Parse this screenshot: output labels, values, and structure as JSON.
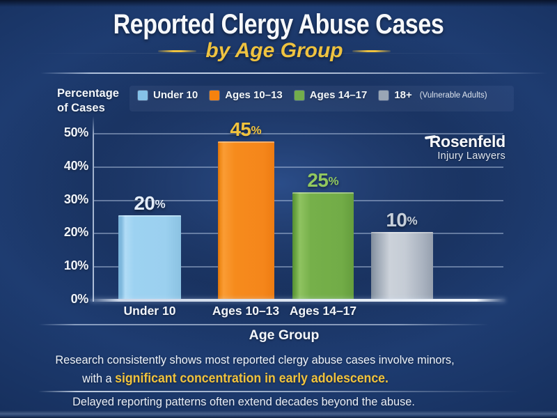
{
  "header": {
    "title": "Reported Clergy Abuse Cases",
    "subtitle": "by Age Group"
  },
  "axis": {
    "ylabel": "Percentage\nof Cases",
    "xlabel": "Age Group",
    "y_ticks": [
      "0%",
      "10%",
      "20%",
      "30%",
      "40%",
      "50%"
    ]
  },
  "legend": {
    "items": [
      {
        "label": "Under 10",
        "note": "",
        "color": "#85c2e8"
      },
      {
        "label": "Ages 10–13",
        "note": "",
        "color": "#f5820f"
      },
      {
        "label": "Ages 14–17",
        "note": "",
        "color": "#72ad4c"
      },
      {
        "label": "18+",
        "note": "(Vulnerable Adults)",
        "color": "#9aa6b5"
      }
    ]
  },
  "chart_data": {
    "type": "bar",
    "title": "Reported Clergy Abuse Cases",
    "subtitle": "by Age Group",
    "xlabel": "Age Group",
    "ylabel": "Percentage of Cases",
    "ylim": [
      0,
      50
    ],
    "y_tick_labels": [
      "0%",
      "10%",
      "20%",
      "30%",
      "40%",
      "50%"
    ],
    "grid": "horizontal",
    "legend_position": "top",
    "categories": [
      "Under 10",
      "Ages 10–13",
      "Ages 14–17",
      "18+ (Vulnerable Adults)"
    ],
    "values": [
      20,
      45,
      25,
      10
    ],
    "x_tick_labels": [
      "Under 10",
      "Ages 10–13",
      "Ages 14–17",
      ""
    ],
    "series": [
      {
        "category": "Under 10",
        "value": 20,
        "label_num": "20",
        "label_suffix": "%",
        "label_color": "#e5eefb",
        "gradient_stops": [
          [
            "#79b3d9",
            0
          ],
          [
            "#7fb9de",
            5
          ],
          [
            "#b0dcf6",
            11
          ],
          [
            "#9dd2f1",
            25
          ],
          [
            "#9bd0ef",
            75
          ],
          [
            "#8bc2e2",
            100
          ]
        ]
      },
      {
        "category": "Ages 10–13",
        "value": 45,
        "label_num": "45",
        "label_suffix": "%",
        "label_color": "#f2c33d",
        "gradient_stops": [
          [
            "#d96f0a",
            0
          ],
          [
            "#f08a18",
            4
          ],
          [
            "#fa9c34",
            10
          ],
          [
            "#f68b1c",
            30
          ],
          [
            "#f5861b",
            80
          ],
          [
            "#ee7c12",
            100
          ]
        ]
      },
      {
        "category": "Ages 14–17",
        "value": 25,
        "label_num": "25",
        "label_suffix": "%",
        "label_color": "#92c95f",
        "gradient_stops": [
          [
            "#558f33",
            0
          ],
          [
            "#6fa845",
            6
          ],
          [
            "#8fc361",
            12
          ],
          [
            "#76b04a",
            30
          ],
          [
            "#72ac47",
            80
          ],
          [
            "#659e3d",
            100
          ]
        ]
      },
      {
        "category": "18+ (Vulnerable Adults)",
        "value": 10,
        "label_num": "10",
        "label_suffix": "%",
        "label_color": "#c7d0db",
        "gradient_stops": [
          [
            "#808d9c",
            0
          ],
          [
            "#97a2b0",
            8
          ],
          [
            "#ccd2da",
            30
          ],
          [
            "#c5ccd5",
            55
          ],
          [
            "#a8b1be",
            85
          ],
          [
            "#959fae",
            100
          ]
        ]
      }
    ],
    "rendered_bar_heights_pct_of_axis": [
      25.6,
      47.7,
      32.5,
      20.5
    ]
  },
  "branding": {
    "name": "Rosenfeld",
    "tagline": "Injury Lawyers"
  },
  "footer": {
    "line1": "Research consistently shows most reported clergy abuse cases involve minors,",
    "line2_prefix": "with a ",
    "line2_highlight": "significant concentration in early adolescence.",
    "line3": "Delayed reporting patterns often extend decades beyond the abuse."
  },
  "colors": {
    "background_navy": "#1e3c71",
    "accent_gold": "#eec23f",
    "text_white": "#f2f6fa",
    "gridline": "#cbdbf2"
  }
}
